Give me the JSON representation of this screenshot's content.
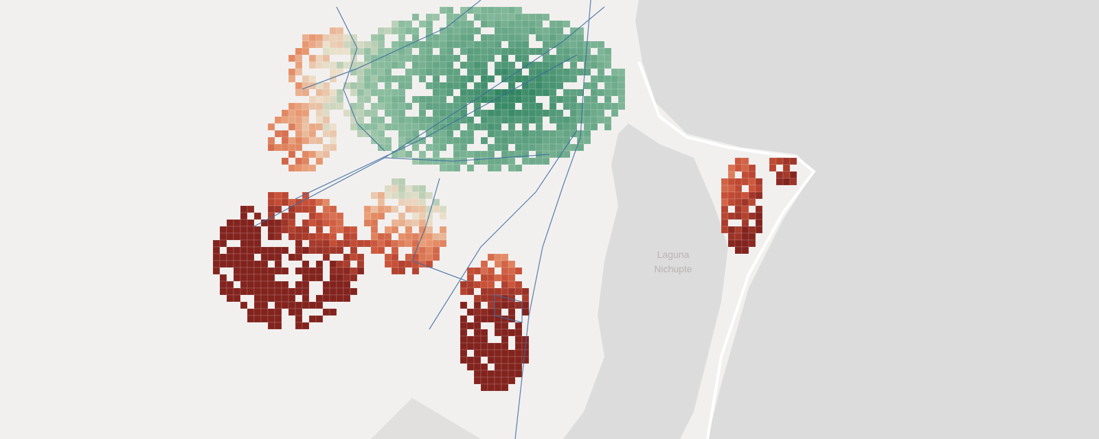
{
  "map": {
    "label": {
      "line1": "Laguna",
      "line2": "Nichupte"
    }
  }
}
